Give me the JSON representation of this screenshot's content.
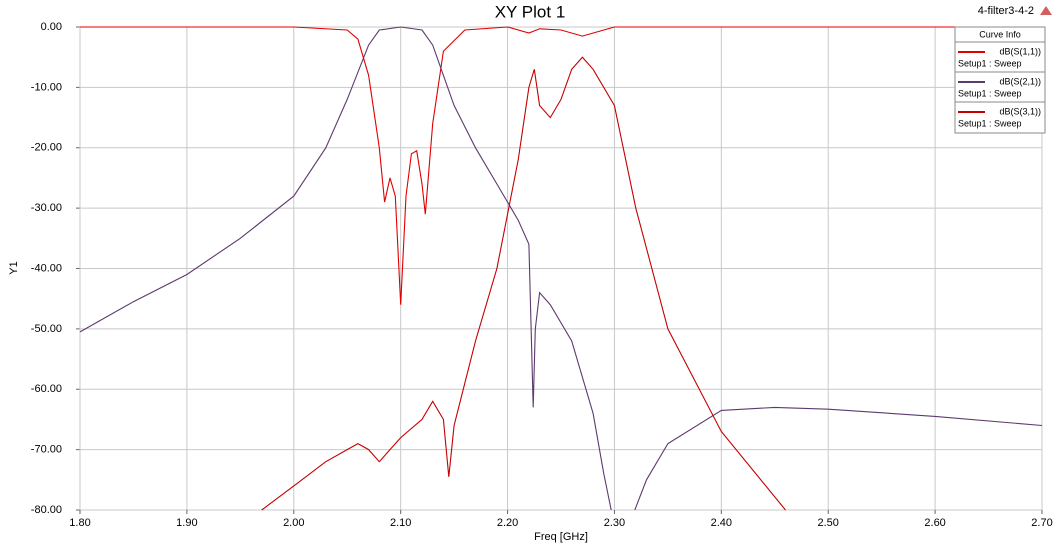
{
  "chart_data": {
    "type": "line",
    "title": "XY Plot 1",
    "project": "4-filter3-4-2",
    "x_label": "Freq [GHz]",
    "y_label": "Y1",
    "legend_title": "Curve Info",
    "legend": "top-right",
    "grid": true,
    "xlim": [
      1.8,
      2.7
    ],
    "ylim": [
      -80,
      0
    ],
    "xticks": [
      {
        "value": 1.8,
        "label": "1.80"
      },
      {
        "value": 1.9,
        "label": "1.90"
      },
      {
        "value": 2.0,
        "label": "2.00"
      },
      {
        "value": 2.1,
        "label": "2.10"
      },
      {
        "value": 2.2,
        "label": "2.20"
      },
      {
        "value": 2.3,
        "label": "2.30"
      },
      {
        "value": 2.4,
        "label": "2.40"
      },
      {
        "value": 2.5,
        "label": "2.50"
      },
      {
        "value": 2.6,
        "label": "2.60"
      },
      {
        "value": 2.7,
        "label": "2.70"
      }
    ],
    "yticks": [
      {
        "value": 0,
        "label": "0.00"
      },
      {
        "value": -10,
        "label": "-10.00"
      },
      {
        "value": -20,
        "label": "-20.00"
      },
      {
        "value": -30,
        "label": "-30.00"
      },
      {
        "value": -40,
        "label": "-40.00"
      },
      {
        "value": -50,
        "label": "-50.00"
      },
      {
        "value": -60,
        "label": "-60.00"
      },
      {
        "value": -70,
        "label": "-70.00"
      },
      {
        "value": -80,
        "label": "-80.00"
      }
    ],
    "series": [
      {
        "name": "dB(S(1,1))",
        "setup": "Setup1 : Sweep",
        "color": "#e00000",
        "x": [
          1.8,
          2.0,
          2.05,
          2.06,
          2.07,
          2.08,
          2.085,
          2.09,
          2.095,
          2.1,
          2.105,
          2.11,
          2.115,
          2.12,
          2.123,
          2.13,
          2.14,
          2.16,
          2.2,
          2.22,
          2.23,
          2.25,
          2.27,
          2.29,
          2.3,
          2.7
        ],
        "values": [
          0,
          0,
          -0.5,
          -2,
          -8,
          -20,
          -29,
          -25,
          -28,
          -46,
          -28,
          -21,
          -20.5,
          -26,
          -31,
          -16,
          -4,
          -0.5,
          0,
          -1,
          -0.3,
          -0.5,
          -1.5,
          -0.5,
          0,
          0
        ]
      },
      {
        "name": "dB(S(2,1))",
        "setup": "Setup1 : Sweep",
        "color": "#5c3a6e",
        "x": [
          1.8,
          1.85,
          1.9,
          1.95,
          2.0,
          2.03,
          2.05,
          2.07,
          2.08,
          2.1,
          2.12,
          2.13,
          2.15,
          2.17,
          2.19,
          2.21,
          2.22,
          2.224,
          2.226,
          2.23,
          2.24,
          2.26,
          2.28,
          2.29,
          2.297,
          2.31,
          2.319,
          2.33,
          2.35,
          2.4,
          2.45,
          2.5,
          2.6,
          2.7
        ],
        "values": [
          -50.5,
          -45.5,
          -41,
          -35,
          -28,
          -20,
          -12,
          -3,
          -0.5,
          0,
          -0.5,
          -3,
          -13,
          -20,
          -26,
          -32,
          -36,
          -63,
          -50,
          -44,
          -46,
          -52,
          -64,
          -74,
          -80,
          null,
          -80,
          -75,
          -69,
          -63.5,
          -63,
          -63.3,
          -64.5,
          -66
        ]
      },
      {
        "name": "dB(S(3,1))",
        "setup": "Setup1 : Sweep",
        "color": "#c40000",
        "x": [
          1.97,
          2.0,
          2.03,
          2.05,
          2.06,
          2.07,
          2.08,
          2.09,
          2.1,
          2.12,
          2.13,
          2.14,
          2.145,
          2.15,
          2.17,
          2.19,
          2.21,
          2.22,
          2.225,
          2.23,
          2.24,
          2.25,
          2.26,
          2.27,
          2.28,
          2.3,
          2.32,
          2.35,
          2.4,
          2.46
        ],
        "values": [
          -80,
          -76,
          -72,
          -70,
          -69,
          -70,
          -72,
          -70,
          -68,
          -65,
          -62,
          -65,
          -74.5,
          -66,
          -52,
          -40,
          -22,
          -10,
          -7,
          -13,
          -15,
          -12,
          -7,
          -5,
          -7,
          -13,
          -30,
          -50,
          -67,
          -80
        ]
      }
    ]
  }
}
